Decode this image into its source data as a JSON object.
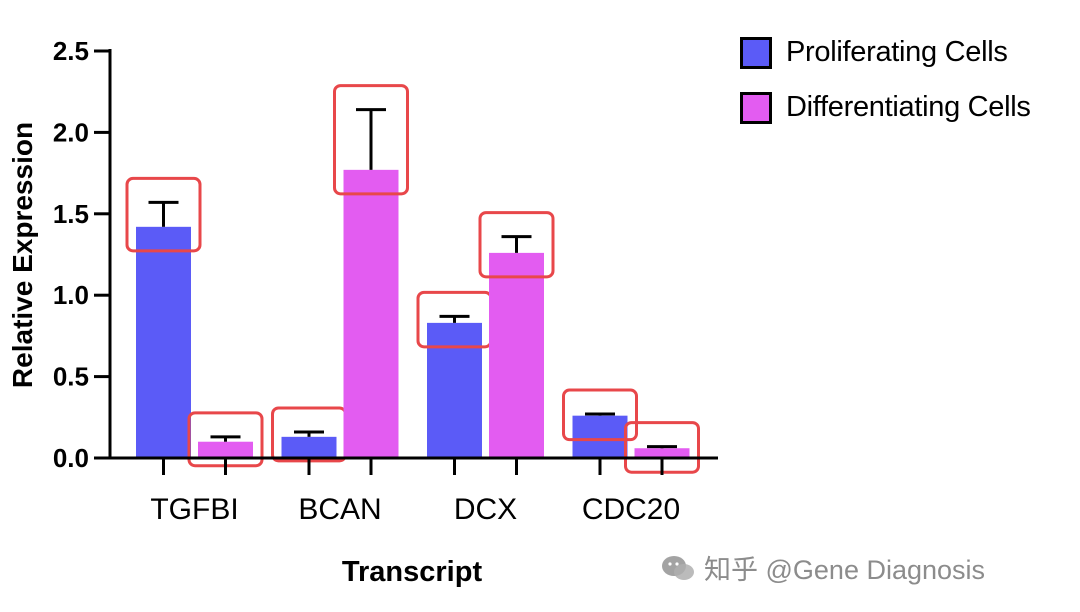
{
  "chart_data": {
    "type": "bar",
    "categories": [
      "TGFBI",
      "BCAN",
      "DCX",
      "CDC20"
    ],
    "series": [
      {
        "name": "Proliferating Cells",
        "color": "#5b5bf7",
        "values": [
          1.42,
          0.13,
          0.83,
          0.26
        ],
        "errors": [
          0.15,
          0.03,
          0.04,
          0.01
        ]
      },
      {
        "name": "Differentiating Cells",
        "color": "#e35cf1",
        "values": [
          0.1,
          1.77,
          1.26,
          0.06
        ],
        "errors": [
          0.03,
          0.37,
          0.1,
          0.01
        ]
      }
    ],
    "xlabel": "Transcript",
    "ylabel": "Relative Expression",
    "ylim": [
      0,
      2.5
    ],
    "yticks": [
      "0.0",
      "0.5",
      "1.0",
      "1.5",
      "2.0",
      "2.5"
    ],
    "legend_position": "top-right",
    "grid": false,
    "highlight_color": "#e8474a"
  },
  "watermark": {
    "text": "知乎 @Gene Diagnosis",
    "icon": "chat-bubbles-icon"
  }
}
